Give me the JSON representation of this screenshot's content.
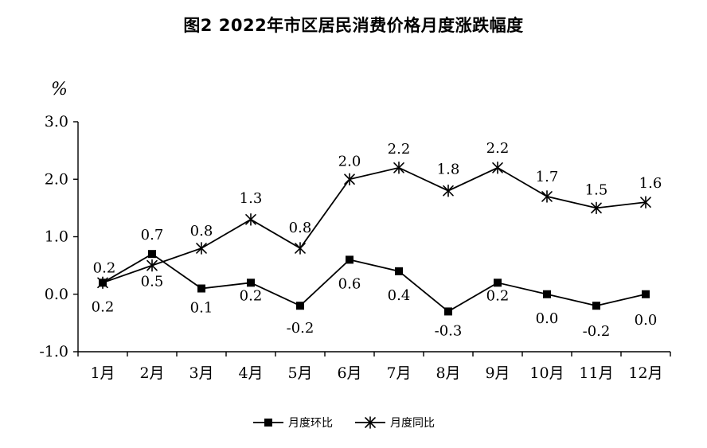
{
  "chart_data": {
    "type": "line",
    "title": "图2  2022年市区居民消费价格月度涨跌幅度",
    "ylabel": "%",
    "xlabel": "",
    "categories": [
      "1月",
      "2月",
      "3月",
      "4月",
      "5月",
      "6月",
      "7月",
      "8月",
      "9月",
      "10月",
      "11月",
      "12月"
    ],
    "yticks": [
      "3.0",
      "2.0",
      "1.0",
      "0.0",
      "-1.0"
    ],
    "ylim": [
      -1.0,
      3.0
    ],
    "grid": false,
    "legend_position": "bottom",
    "series": [
      {
        "name": "月度环比",
        "marker": "square",
        "values": [
          0.2,
          0.7,
          0.1,
          0.2,
          -0.2,
          0.6,
          0.4,
          -0.3,
          0.2,
          0.0,
          -0.2,
          0.0
        ],
        "labels": [
          "0.2",
          "0.7",
          "0.1",
          "0.2",
          "-0.2",
          "0.6",
          "0.4",
          "-0.3",
          "0.2",
          "0.0",
          "-0.2",
          "0.0"
        ]
      },
      {
        "name": "月度同比",
        "marker": "star",
        "values": [
          0.2,
          0.5,
          0.8,
          1.3,
          0.8,
          2.0,
          2.2,
          1.8,
          2.2,
          1.7,
          1.5,
          1.6
        ],
        "labels": [
          "0.2",
          "0.5",
          "0.8",
          "1.3",
          "0.8",
          "2.0",
          "2.2",
          "1.8",
          "2.2",
          "1.7",
          "1.5",
          "1.6"
        ]
      }
    ],
    "colors": {
      "line": "#000000",
      "background": "#ffffff"
    }
  }
}
